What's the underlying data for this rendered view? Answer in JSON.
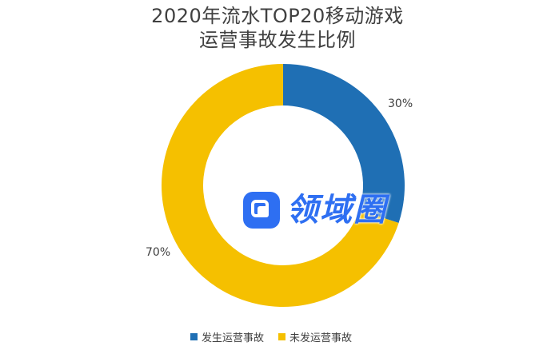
{
  "chart_data": {
    "type": "pie",
    "title_line1": "2020年流水TOP20移动游戏",
    "title_line2": "运营事故发生比例",
    "slices": [
      {
        "name": "发生运营事故",
        "value": 30,
        "label": "30%",
        "color": "#1f6fb4"
      },
      {
        "name": "未发运营事故",
        "value": 70,
        "label": "70%",
        "color": "#f5c000"
      }
    ],
    "legend_position": "bottom"
  },
  "watermark": {
    "text": "领域圈",
    "color": "#2e6ff2"
  }
}
